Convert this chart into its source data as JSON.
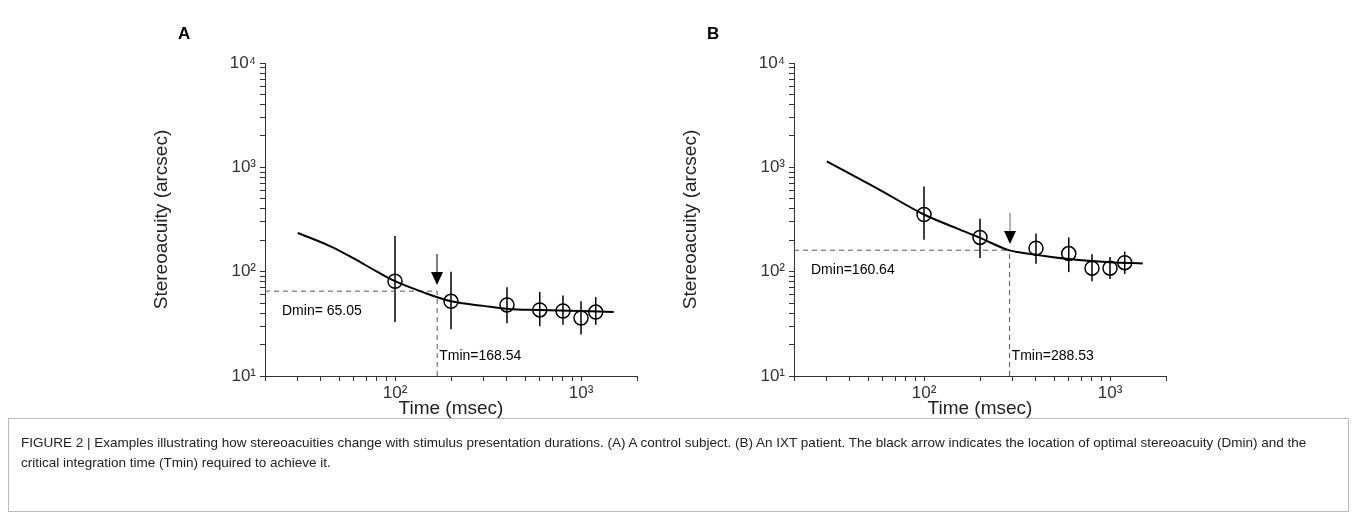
{
  "chart_data": [
    {
      "type": "scatter",
      "title": "A",
      "xlabel": "Time (msec)",
      "ylabel": "Stereoacuity (arcsec)",
      "log": "xy",
      "xlim": [
        20,
        2000
      ],
      "ylim": [
        10,
        10000
      ],
      "xticks": [
        {
          "value": 20,
          "label": null
        },
        {
          "value": 30,
          "label": null
        },
        {
          "value": 40,
          "label": null
        },
        {
          "value": 50,
          "label": null
        },
        {
          "value": 60,
          "label": null
        },
        {
          "value": 70,
          "label": null
        },
        {
          "value": 80,
          "label": null
        },
        {
          "value": 90,
          "label": null
        },
        {
          "value": 100,
          "label": "10²"
        },
        {
          "value": 200,
          "label": null
        },
        {
          "value": 300,
          "label": null
        },
        {
          "value": 400,
          "label": null
        },
        {
          "value": 500,
          "label": null
        },
        {
          "value": 600,
          "label": null
        },
        {
          "value": 700,
          "label": null
        },
        {
          "value": 800,
          "label": null
        },
        {
          "value": 900,
          "label": null
        },
        {
          "value": 1000,
          "label": "10³"
        },
        {
          "value": 2000,
          "label": null
        }
      ],
      "yticks": [
        {
          "value": 10,
          "label": "10¹"
        },
        {
          "value": 20,
          "label": null
        },
        {
          "value": 30,
          "label": null
        },
        {
          "value": 40,
          "label": null
        },
        {
          "value": 50,
          "label": null
        },
        {
          "value": 60,
          "label": null
        },
        {
          "value": 70,
          "label": null
        },
        {
          "value": 80,
          "label": null
        },
        {
          "value": 90,
          "label": null
        },
        {
          "value": 100,
          "label": "10²"
        },
        {
          "value": 200,
          "label": null
        },
        {
          "value": 300,
          "label": null
        },
        {
          "value": 400,
          "label": null
        },
        {
          "value": 500,
          "label": null
        },
        {
          "value": 600,
          "label": null
        },
        {
          "value": 700,
          "label": null
        },
        {
          "value": 800,
          "label": null
        },
        {
          "value": 900,
          "label": null
        },
        {
          "value": 1000,
          "label": "10³"
        },
        {
          "value": 2000,
          "label": null
        },
        {
          "value": 3000,
          "label": null
        },
        {
          "value": 4000,
          "label": null
        },
        {
          "value": 5000,
          "label": null
        },
        {
          "value": 6000,
          "label": null
        },
        {
          "value": 7000,
          "label": null
        },
        {
          "value": 8000,
          "label": null
        },
        {
          "value": 9000,
          "label": null
        },
        {
          "value": 10000,
          "label": "10⁴"
        }
      ],
      "series": [
        {
          "marker": "circle",
          "color": "#000000",
          "x": [
            100,
            200,
            400,
            600,
            800,
            1000,
            1200
          ],
          "values": [
            81,
            52,
            48,
            43,
            42,
            36,
            41
          ],
          "errors": [
            [
              33,
              220
            ],
            [
              28,
              100
            ],
            [
              32,
              71
            ],
            [
              30,
              64
            ],
            [
              31,
              59
            ],
            [
              25,
              52
            ],
            [
              31,
              57
            ]
          ]
        },
        {
          "type": "line",
          "marker": "none",
          "color": "#000000",
          "x": [
            30,
            45,
            60,
            80,
            100,
            140,
            200,
            300,
            400,
            600,
            1000,
            1500
          ],
          "values": [
            235,
            175,
            134,
            100,
            81,
            64,
            52,
            47,
            44,
            43,
            42,
            41
          ]
        }
      ],
      "ref_lines": [
        {
          "axis": "y",
          "value": 65.05,
          "label": "Dmin= 65.05",
          "color": "#555555",
          "line_style": "dashed"
        },
        {
          "axis": "x",
          "value": 168.54,
          "label": "Tmin=168.54",
          "color": "#555555",
          "line_style": "dashed"
        }
      ],
      "annotations": [
        "FIGURE 2 | Examples illustrating how stereoacuities change with stimulus presentation durations. (A) A control subject. (B) An IXT patient. The black arrow indicates the location of optimal stereoacuity (Dmin) and the critical integration time (Tmin) required to achieve it."
      ]
    },
    {
      "type": "scatter",
      "title": "B",
      "xlabel": "Time (msec)",
      "ylabel": "Stereoacuity (arcsec)",
      "log": "xy",
      "xlim": [
        20,
        2000
      ],
      "ylim": [
        10,
        10000
      ],
      "xticks": [
        {
          "value": 20,
          "label": null
        },
        {
          "value": 30,
          "label": null
        },
        {
          "value": 40,
          "label": null
        },
        {
          "value": 50,
          "label": null
        },
        {
          "value": 60,
          "label": null
        },
        {
          "value": 70,
          "label": null
        },
        {
          "value": 80,
          "label": null
        },
        {
          "value": 90,
          "label": null
        },
        {
          "value": 100,
          "label": "10²"
        },
        {
          "value": 200,
          "label": null
        },
        {
          "value": 300,
          "label": null
        },
        {
          "value": 400,
          "label": null
        },
        {
          "value": 500,
          "label": null
        },
        {
          "value": 600,
          "label": null
        },
        {
          "value": 700,
          "label": null
        },
        {
          "value": 800,
          "label": null
        },
        {
          "value": 900,
          "label": null
        },
        {
          "value": 1000,
          "label": "10³"
        },
        {
          "value": 2000,
          "label": null
        }
      ],
      "yticks": [
        {
          "value": 10,
          "label": "10¹"
        },
        {
          "value": 20,
          "label": null
        },
        {
          "value": 30,
          "label": null
        },
        {
          "value": 40,
          "label": null
        },
        {
          "value": 50,
          "label": null
        },
        {
          "value": 60,
          "label": null
        },
        {
          "value": 70,
          "label": null
        },
        {
          "value": 80,
          "label": null
        },
        {
          "value": 90,
          "label": null
        },
        {
          "value": 100,
          "label": "10²"
        },
        {
          "value": 200,
          "label": null
        },
        {
          "value": 300,
          "label": null
        },
        {
          "value": 400,
          "label": null
        },
        {
          "value": 500,
          "label": null
        },
        {
          "value": 600,
          "label": null
        },
        {
          "value": 700,
          "label": null
        },
        {
          "value": 800,
          "label": null
        },
        {
          "value": 900,
          "label": null
        },
        {
          "value": 1000,
          "label": "10³"
        },
        {
          "value": 2000,
          "label": null
        },
        {
          "value": 3000,
          "label": null
        },
        {
          "value": 4000,
          "label": null
        },
        {
          "value": 5000,
          "label": null
        },
        {
          "value": 6000,
          "label": null
        },
        {
          "value": 7000,
          "label": null
        },
        {
          "value": 8000,
          "label": null
        },
        {
          "value": 9000,
          "label": null
        },
        {
          "value": 10000,
          "label": "10⁴"
        }
      ],
      "series": [
        {
          "marker": "circle",
          "color": "#000000",
          "x": [
            100,
            200,
            400,
            600,
            800,
            1000,
            1200
          ],
          "values": [
            353,
            213,
            168,
            149,
            108,
            108,
            122
          ],
          "errors": [
            [
              202,
              655
            ],
            [
              135,
              321
            ],
            [
              119,
              232
            ],
            [
              99,
              213
            ],
            [
              81,
              147
            ],
            [
              85,
              138
            ],
            [
              95,
              156
            ]
          ]
        },
        {
          "type": "line",
          "marker": "none",
          "color": "#000000",
          "x": [
            30,
            55,
            100,
            150,
            200,
            285,
            400,
            600,
            1000,
            1500
          ],
          "values": [
            1143,
            640,
            353,
            260,
            211,
            161,
            145,
            132,
            123,
            120
          ]
        }
      ],
      "ref_lines": [
        {
          "axis": "y",
          "value": 160.64,
          "label": "Dmin=160.64",
          "color": "#555555",
          "line_style": "dashed"
        },
        {
          "axis": "x",
          "value": 288.53,
          "label": "Tmin=288.53",
          "color": "#555555",
          "line_style": "dashed"
        }
      ]
    }
  ]
}
